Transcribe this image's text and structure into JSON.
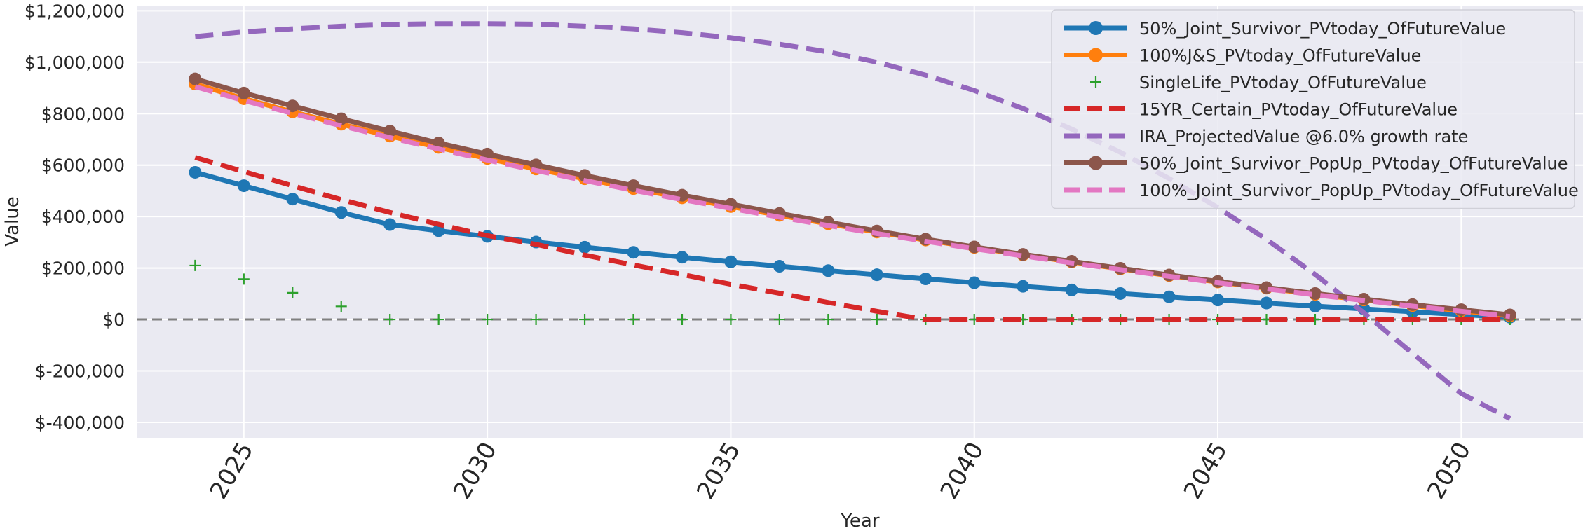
{
  "chart_data": {
    "type": "line",
    "xlabel": "Year",
    "ylabel": "Value",
    "xlim": [
      2022.8,
      2052.5
    ],
    "ylim": [
      -460000,
      1220000
    ],
    "grid": true,
    "legend_position": "top-right",
    "x_ticks": [
      2025,
      2030,
      2035,
      2040,
      2045,
      2050
    ],
    "x_tick_labels": [
      "2025",
      "2030",
      "2035",
      "2040",
      "2045",
      "2050"
    ],
    "y_ticks": [
      -400000,
      -200000,
      0,
      200000,
      400000,
      600000,
      800000,
      1000000,
      1200000
    ],
    "y_tick_labels": [
      "$-400,000",
      "$-200,000",
      "$0",
      "$200,000",
      "$400,000",
      "$600,000",
      "$800,000",
      "$1,000,000",
      "$1,200,000"
    ],
    "reference_line": {
      "y": 0,
      "style": "dashed",
      "color": "#808080"
    },
    "x": [
      2024,
      2025,
      2026,
      2027,
      2028,
      2029,
      2030,
      2031,
      2032,
      2033,
      2034,
      2035,
      2036,
      2037,
      2038,
      2039,
      2040,
      2041,
      2042,
      2043,
      2044,
      2045,
      2046,
      2047,
      2048,
      2049,
      2050,
      2051
    ],
    "series": [
      {
        "name": "50%_Joint_Survivor_PVtoday_OfFutureValue",
        "color": "#1f77b4",
        "style": "solid-marker",
        "values": [
          572000,
          520000,
          468000,
          416000,
          369000,
          345000,
          323000,
          301000,
          281000,
          261000,
          242000,
          224000,
          207000,
          190000,
          174000,
          158000,
          143000,
          129000,
          115000,
          101000,
          88000,
          76000,
          64000,
          52000,
          41000,
          30000,
          19000,
          9000
        ]
      },
      {
        "name": "100%J&S_PVtoday_OfFutureValue",
        "color": "#ff7f0e",
        "style": "solid-marker",
        "values": [
          915000,
          858000,
          807000,
          759000,
          713000,
          669000,
          626000,
          585000,
          547000,
          509000,
          473000,
          439000,
          405000,
          372000,
          340000,
          309000,
          280000,
          251000,
          224000,
          197000,
          171000,
          146000,
          122000,
          98000,
          76000,
          54000,
          34000,
          14000
        ]
      },
      {
        "name": "SingleLife_PVtoday_OfFutureValue",
        "color": "#2ca02c",
        "style": "plus",
        "values": [
          210000,
          157000,
          104000,
          51000,
          0,
          0,
          0,
          0,
          0,
          0,
          0,
          0,
          0,
          0,
          0,
          0,
          0,
          0,
          0,
          0,
          0,
          0,
          0,
          0,
          0,
          0,
          0,
          0
        ]
      },
      {
        "name": "15YR_Certain_PVtoday_OfFutureValue",
        "color": "#d62728",
        "style": "dashed",
        "values": [
          630000,
          575000,
          520000,
          466000,
          416000,
          370000,
          326000,
          292000,
          250000,
          212000,
          175000,
          137000,
          102000,
          66000,
          32000,
          0,
          0,
          0,
          0,
          0,
          0,
          0,
          0,
          0,
          0,
          0,
          0,
          0
        ]
      },
      {
        "name": "IRA_ProjectedValue @6.0% growth rate",
        "color": "#9467bd",
        "style": "dashed",
        "values": [
          1100000,
          1118000,
          1130000,
          1140000,
          1147000,
          1150000,
          1150000,
          1148000,
          1140000,
          1130000,
          1115000,
          1095000,
          1070000,
          1040000,
          1000000,
          950000,
          890000,
          820000,
          740000,
          650000,
          548000,
          435000,
          311000,
          175000,
          26000,
          -132000,
          -288000,
          -385000
        ]
      },
      {
        "name": "50%_Joint_Survivor_PopUp_PVtoday_OfFutureValue",
        "color": "#8c564b",
        "style": "solid-marker",
        "values": [
          935000,
          880000,
          830000,
          780000,
          732000,
          686000,
          643000,
          601000,
          560000,
          520000,
          483000,
          448000,
          412000,
          378000,
          344000,
          312000,
          282000,
          253000,
          226000,
          199000,
          173000,
          148000,
          124000,
          101000,
          79000,
          58000,
          38000,
          18000
        ]
      },
      {
        "name": "100%_Joint_Survivor_PopUp_PVtoday_OfFutureValue",
        "color": "#e377c2",
        "style": "dashed",
        "values": [
          905000,
          851000,
          801000,
          753000,
          707000,
          663000,
          620000,
          579000,
          540000,
          502000,
          466000,
          432000,
          398000,
          365000,
          334000,
          304000,
          275000,
          247000,
          220000,
          194000,
          168000,
          143000,
          119000,
          96000,
          74000,
          52000,
          32000,
          12000
        ]
      }
    ]
  }
}
